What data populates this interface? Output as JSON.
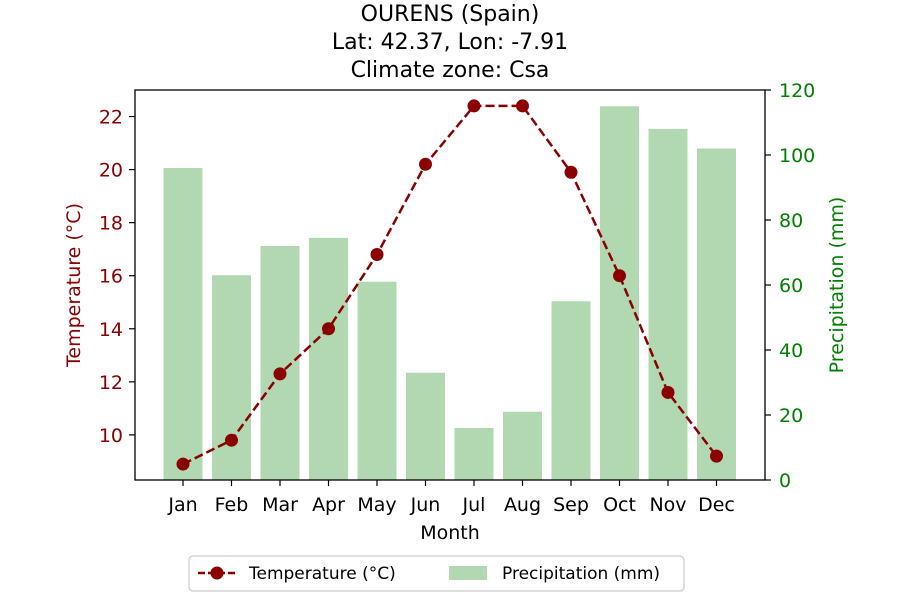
{
  "chart_data": {
    "type": "bar",
    "title_lines": [
      "OURENS (Spain)",
      "Lat: 42.37, Lon: -7.91",
      "Climate zone: Csa"
    ],
    "xlabel": "Month",
    "ylabel_left": "Temperature (°C)",
    "ylabel_right": "Precipitation (mm)",
    "categories": [
      "Jan",
      "Feb",
      "Mar",
      "Apr",
      "May",
      "Jun",
      "Jul",
      "Aug",
      "Sep",
      "Oct",
      "Nov",
      "Dec"
    ],
    "series": [
      {
        "name": "Temperature (°C)",
        "type": "line",
        "axis": "left",
        "color": "#8b0000",
        "values": [
          8.9,
          9.8,
          12.3,
          14.0,
          16.8,
          20.2,
          22.4,
          22.4,
          19.9,
          16.0,
          11.6,
          9.2
        ]
      },
      {
        "name": "Precipitation (mm)",
        "type": "bar",
        "axis": "right",
        "color": "#b2d8b2",
        "values": [
          96,
          63,
          72,
          74.5,
          61,
          33,
          16,
          21,
          55,
          115,
          108,
          102
        ]
      }
    ],
    "ylim_left": [
      8.3,
      23.0
    ],
    "yticks_left": [
      10,
      12,
      14,
      16,
      18,
      20,
      22
    ],
    "ylim_right": [
      0,
      120
    ],
    "yticks_right": [
      0,
      20,
      40,
      60,
      80,
      100,
      120
    ],
    "left_axis_color": "#8b0000",
    "right_axis_color": "#008000",
    "legend_position": "bottom-center",
    "grid": false
  }
}
